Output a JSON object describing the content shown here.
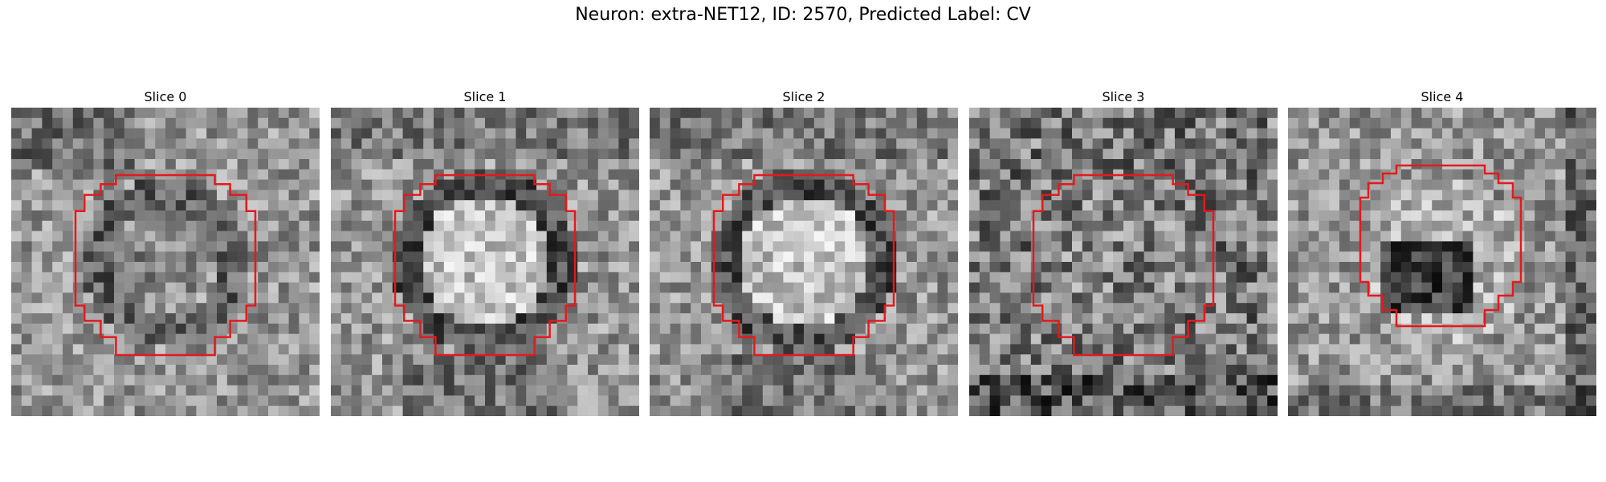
{
  "figure": {
    "title": "Neuron: extra-NET12, ID: 2570, Predicted Label: CV"
  },
  "panels": [
    {
      "title": "Slice 0"
    },
    {
      "title": "Slice 1"
    },
    {
      "title": "Slice 2"
    },
    {
      "title": "Slice 3"
    },
    {
      "title": "Slice 4"
    }
  ],
  "colors": {
    "contour": "#e31a1c",
    "colormap": "grayscale"
  }
}
